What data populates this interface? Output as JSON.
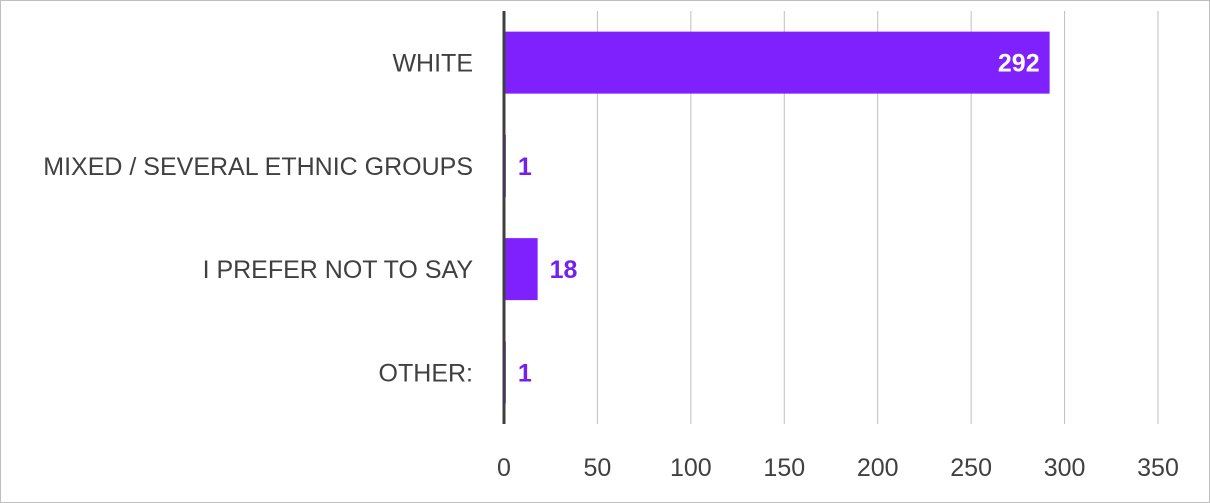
{
  "chart_data": {
    "type": "bar",
    "orientation": "horizontal",
    "categories": [
      "WHITE",
      "MIXED / SEVERAL ETHNIC GROUPS",
      "I PREFER NOT TO SAY",
      "OTHER:"
    ],
    "values": [
      292,
      1,
      18,
      1
    ],
    "title": "",
    "xlabel": "",
    "ylabel": "",
    "xlim": [
      0,
      350
    ],
    "xticks": [
      0,
      50,
      100,
      150,
      200,
      250,
      300,
      350
    ],
    "grid": true,
    "legend": "none",
    "colors": {
      "bar": "#7f21fd",
      "label_inside": "#ffffff",
      "label_outside": "#7420f0",
      "grid": "#bfbfbf",
      "axis": "#404040",
      "text": "#404040"
    }
  }
}
